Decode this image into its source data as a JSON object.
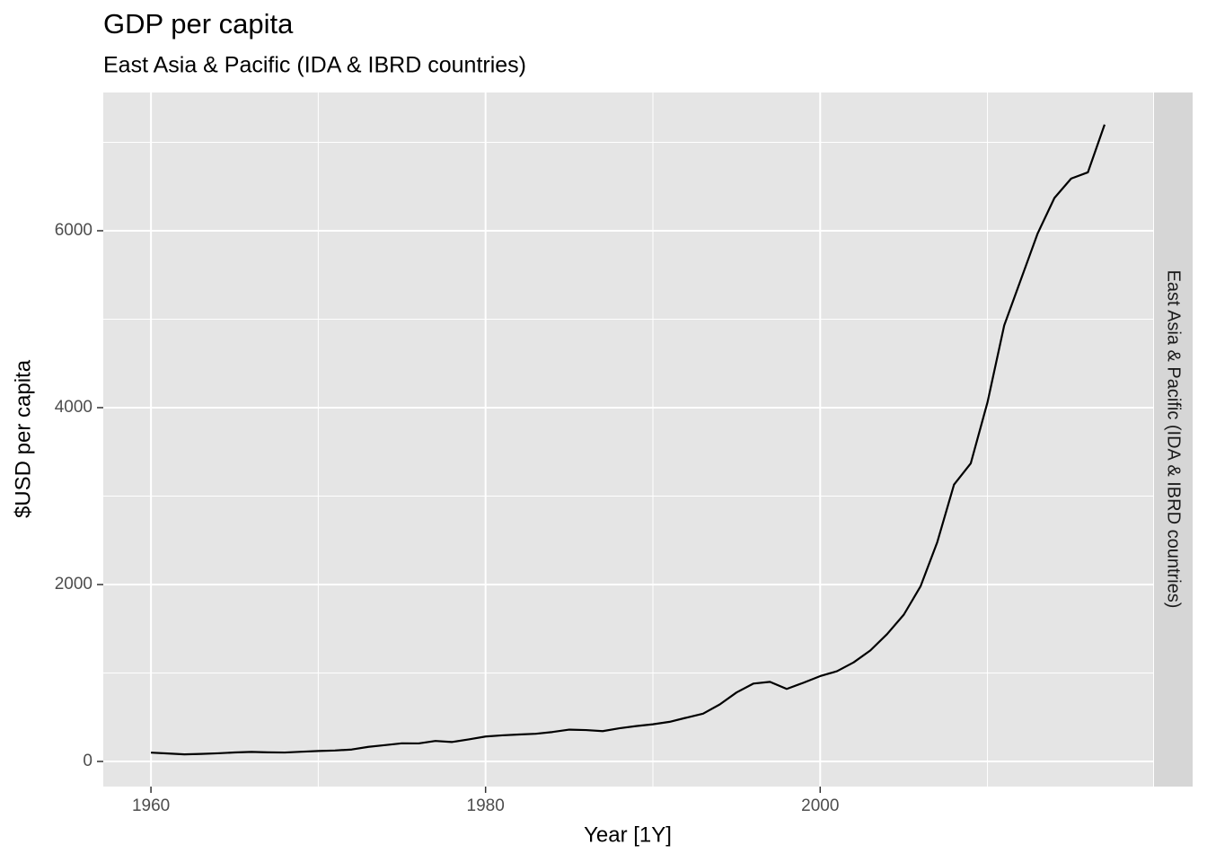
{
  "chart_data": {
    "type": "line",
    "title": "GDP per capita",
    "subtitle": "East Asia & Pacific (IDA & IBRD countries)",
    "facet": "East Asia & Pacific (IDA & IBRD countries)",
    "xlabel": "Year [1Y]",
    "ylabel": "$USD per capita",
    "x": [
      1960,
      1961,
      1962,
      1963,
      1964,
      1965,
      1966,
      1967,
      1968,
      1969,
      1970,
      1971,
      1972,
      1973,
      1974,
      1975,
      1976,
      1977,
      1978,
      1979,
      1980,
      1981,
      1982,
      1983,
      1984,
      1985,
      1986,
      1987,
      1988,
      1989,
      1990,
      1991,
      1992,
      1993,
      1994,
      1995,
      1996,
      1997,
      1998,
      1999,
      2000,
      2001,
      2002,
      2003,
      2004,
      2005,
      2006,
      2007,
      2008,
      2009,
      2010,
      2011,
      2012,
      2013,
      2014,
      2015,
      2016,
      2017
    ],
    "values": [
      100,
      90,
      80,
      85,
      92,
      102,
      108,
      103,
      101,
      110,
      118,
      124,
      135,
      165,
      185,
      205,
      204,
      232,
      220,
      250,
      282,
      295,
      305,
      313,
      333,
      360,
      355,
      343,
      375,
      400,
      420,
      448,
      495,
      540,
      645,
      780,
      880,
      900,
      820,
      890,
      965,
      1020,
      1120,
      1255,
      1440,
      1660,
      1980,
      2480,
      3130,
      3370,
      4060,
      4930,
      5450,
      5970,
      6370,
      6590,
      6660,
      7200
    ],
    "color": "#000000",
    "xlim": [
      1957.15,
      2019.9
    ],
    "ylim": [
      -284,
      7563
    ],
    "xticks": [
      1960,
      1980,
      2000
    ],
    "yticks": [
      0,
      2000,
      4000,
      6000
    ],
    "grid": true
  }
}
